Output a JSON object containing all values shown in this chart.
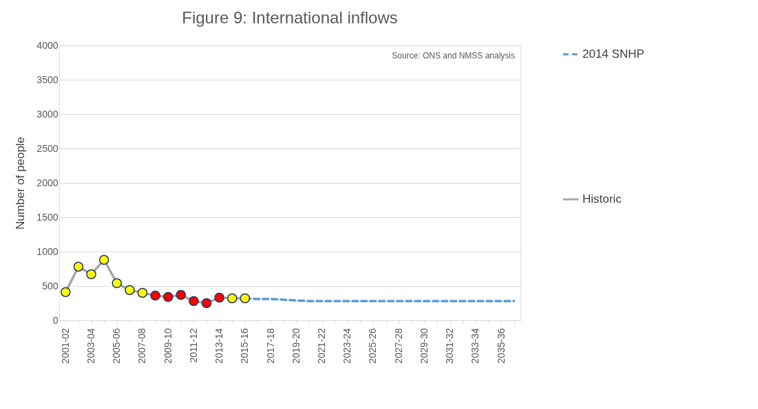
{
  "chart_data": {
    "type": "line",
    "title": "Figure 9: International inflows",
    "ylabel": "Number of people",
    "categories": [
      "2001-02",
      null,
      "2003-04",
      null,
      "2005-06",
      null,
      "2007-08",
      null,
      "2009-10",
      null,
      "2011-12",
      null,
      "2013-14",
      null,
      "2015-16",
      null,
      "2017-18",
      null,
      "2019-20",
      null,
      "2021-22",
      null,
      "2023-24",
      null,
      "2025-26",
      null,
      "2027-28",
      null,
      "2029-30",
      null,
      "3031-32",
      null,
      "2033-34",
      null,
      "2035-36",
      null
    ],
    "series": [
      {
        "name": "2014 SNHP",
        "color": "#5b9bd5",
        "line_style": "dashed",
        "marker": "none",
        "values": [
          null,
          null,
          null,
          null,
          null,
          null,
          null,
          null,
          null,
          null,
          null,
          null,
          null,
          null,
          320,
          310,
          310,
          300,
          290,
          280,
          280,
          280,
          280,
          280,
          280,
          280,
          280,
          280,
          280,
          280,
          280,
          280,
          280,
          280,
          280,
          280
        ]
      },
      {
        "name": "Historic",
        "color": "#a5a5a5",
        "line_style": "solid",
        "marker": "circle",
        "colors": [
          "#ffff00",
          "#ffff00",
          "#ffff00",
          "#ffff00",
          "#ffff00",
          "#ffff00",
          "#ffff00",
          "#ff0000",
          "#ff0000",
          "#ff0000",
          "#ff0000",
          "#ff0000",
          "#ff0000",
          "#ffff00",
          "#ffff00",
          null,
          null,
          null,
          null,
          null,
          null,
          null,
          null,
          null,
          null,
          null,
          null,
          null,
          null,
          null,
          null,
          null,
          null,
          null,
          null,
          null
        ],
        "values": [
          410,
          780,
          670,
          880,
          540,
          440,
          400,
          360,
          340,
          370,
          280,
          250,
          330,
          320,
          320,
          null,
          null,
          null,
          null,
          null,
          null,
          null,
          null,
          null,
          null,
          null,
          null,
          null,
          null,
          null,
          null,
          null,
          null,
          null,
          null,
          null
        ]
      }
    ],
    "ylim": [
      0,
      4000
    ],
    "yticks": [
      0,
      500,
      1000,
      1500,
      2000,
      2500,
      3000,
      3500,
      4000
    ],
    "grid": "y",
    "legend": "right",
    "annotations": [
      "Source: ONS and NMSS analysis"
    ]
  }
}
